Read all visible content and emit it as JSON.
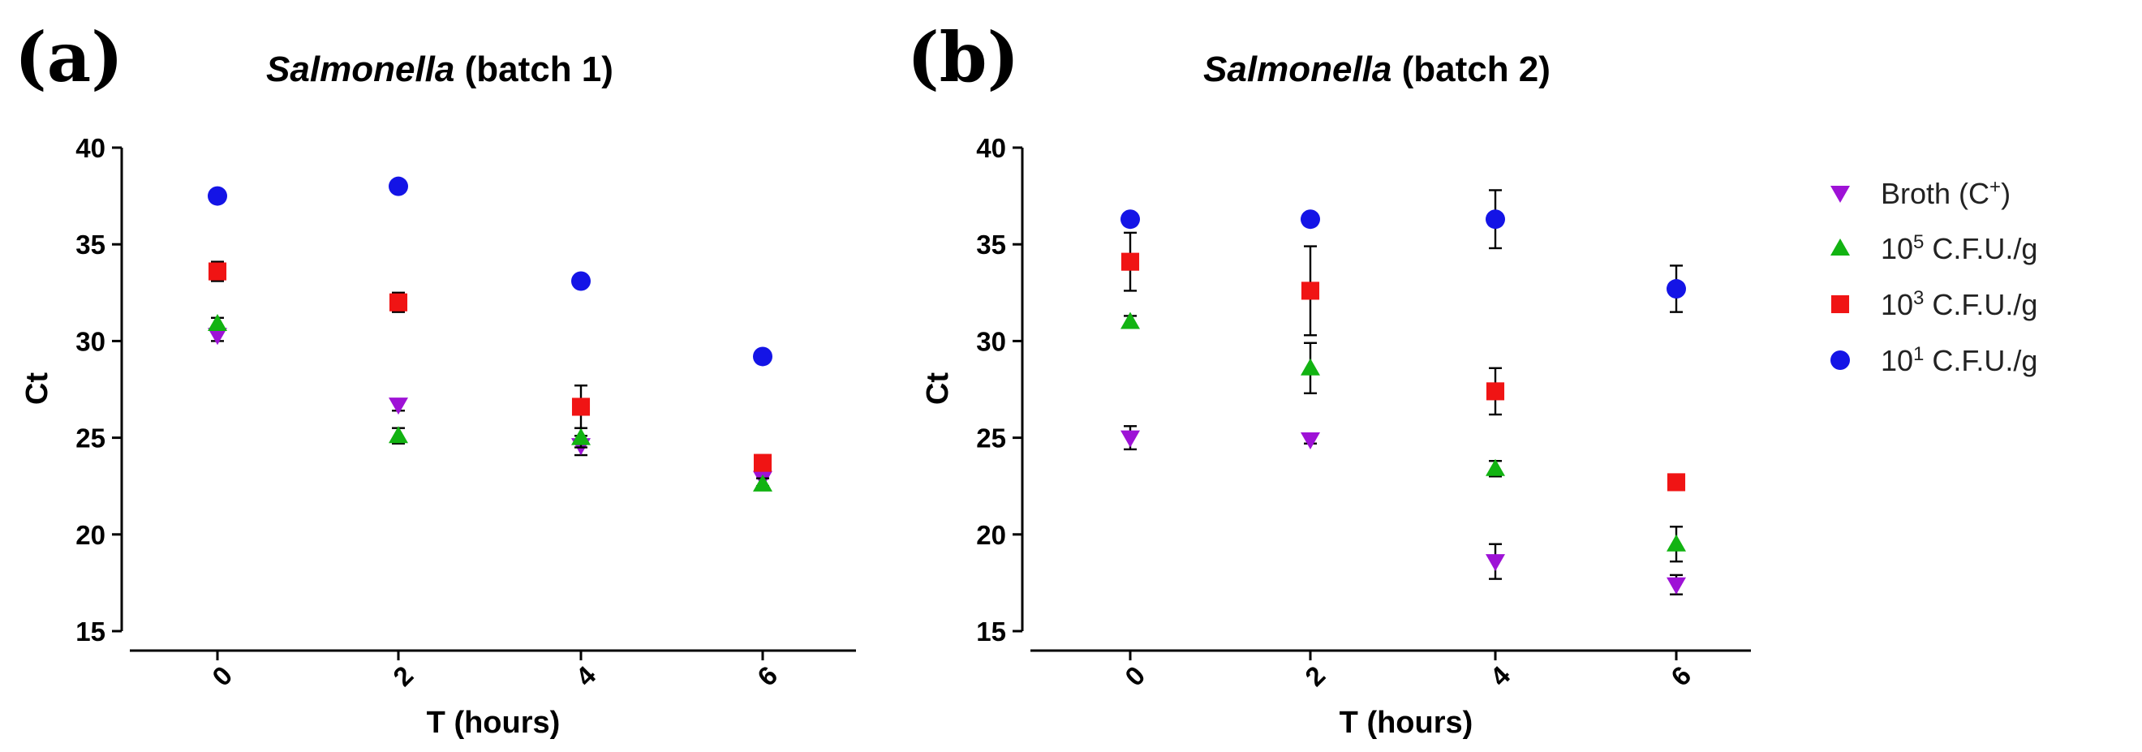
{
  "colors": {
    "broth": "#9e12d6",
    "cfu5": "#12b312",
    "cfu3": "#f01414",
    "cfu1": "#1414e6"
  },
  "legend": [
    {
      "key": "broth",
      "marker": "triangle-down",
      "base": "Broth (C",
      "sup": "+",
      "tail": ")"
    },
    {
      "key": "cfu5",
      "marker": "triangle-up",
      "base": "10",
      "sup": "5",
      "tail": " C.F.U./g"
    },
    {
      "key": "cfu3",
      "marker": "square",
      "base": "10",
      "sup": "3",
      "tail": " C.F.U./g"
    },
    {
      "key": "cfu1",
      "marker": "circle",
      "base": "10",
      "sup": "1",
      "tail": " C.F.U./g"
    }
  ],
  "chart_data": [
    {
      "type": "scatter",
      "panel_label": "(a)",
      "title_italic": "Salmonella",
      "title_rest": " (batch 1)",
      "xlabel": "T (hours)",
      "ylabel": "Ct",
      "x": [
        0,
        2,
        4,
        6
      ],
      "xticks": [
        "0",
        "2",
        "4",
        "6"
      ],
      "yticks": [
        "15",
        "20",
        "25",
        "30",
        "35",
        "40"
      ],
      "ylim": [
        15,
        40
      ],
      "series": [
        {
          "key": "broth",
          "name": "Broth (C+)",
          "values": [
            30.3,
            26.7,
            24.6,
            22.9
          ],
          "err": [
            0.3,
            0.3,
            0.5,
            0.4
          ]
        },
        {
          "key": "cfu5",
          "name": "10^5 C.F.U./g",
          "values": [
            30.9,
            25.1,
            25.0,
            22.6
          ],
          "err": [
            0.3,
            0.4,
            0.5,
            0.3
          ]
        },
        {
          "key": "cfu3",
          "name": "10^3 C.F.U./g",
          "values": [
            33.6,
            32.0,
            26.6,
            23.7
          ],
          "err": [
            0.5,
            0.5,
            1.1,
            0.4
          ]
        },
        {
          "key": "cfu1",
          "name": "10^1 C.F.U./g",
          "values": [
            37.5,
            38.0,
            33.1,
            29.2
          ],
          "err": [
            0.2,
            0.2,
            0.2,
            0.2
          ]
        }
      ]
    },
    {
      "type": "scatter",
      "panel_label": "(b)",
      "title_italic": "Salmonella",
      "title_rest": "  (batch 2)",
      "xlabel": "T (hours)",
      "ylabel": "Ct",
      "x": [
        0,
        2,
        4,
        6
      ],
      "xticks": [
        "0",
        "2",
        "4",
        "6"
      ],
      "yticks": [
        "15",
        "20",
        "25",
        "30",
        "35",
        "40"
      ],
      "ylim": [
        15,
        40
      ],
      "series": [
        {
          "key": "broth",
          "name": "Broth (C+)",
          "values": [
            25.0,
            24.9,
            18.6,
            17.4
          ],
          "err": [
            0.6,
            0.2,
            0.9,
            0.5
          ]
        },
        {
          "key": "cfu5",
          "name": "10^5 C.F.U./g",
          "values": [
            31.0,
            28.6,
            23.4,
            19.5
          ],
          "err": [
            0.3,
            1.3,
            0.4,
            0.9
          ]
        },
        {
          "key": "cfu3",
          "name": "10^3 C.F.U./g",
          "values": [
            34.1,
            32.6,
            27.4,
            22.7
          ],
          "err": [
            1.5,
            2.3,
            1.2,
            0.4
          ]
        },
        {
          "key": "cfu1",
          "name": "10^1 C.F.U./g",
          "values": [
            36.3,
            36.3,
            36.3,
            32.7
          ],
          "err": [
            0.2,
            0.2,
            1.5,
            1.2
          ]
        }
      ]
    }
  ]
}
